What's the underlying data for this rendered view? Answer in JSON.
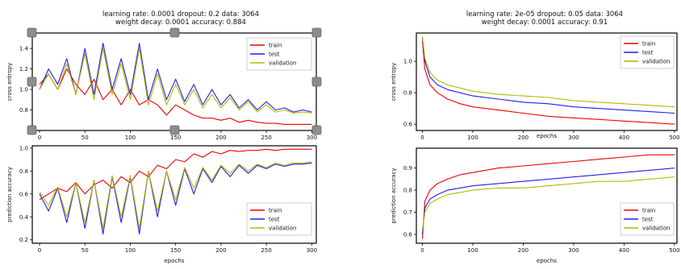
{
  "figures": [
    {
      "title_line1": "learning rate: 0.0001 dropout: 0.2 data: 3064",
      "title_line2": "weight decay: 0.0001 accuracy: 0.884"
    },
    {
      "title_line1": "learning rate: 2e-05 dropout: 0.05 data: 3064",
      "title_line2": "weight decay: 0.0001 accuracy: 0.91"
    }
  ],
  "colors": {
    "train": "#ee0000",
    "test": "#1f1fee",
    "validation": "#b8b800"
  },
  "chart_data": [
    {
      "type": "line",
      "panel": "top-left",
      "xlabel": "",
      "ylabel": "cross entropy",
      "xlim": [
        -8,
        305
      ],
      "ylim": [
        0.6,
        1.55
      ],
      "xticks": [
        0,
        50,
        100,
        150,
        200,
        250,
        300
      ],
      "yticks": [
        0.8,
        1.0,
        1.2,
        1.4
      ],
      "legend": "top-right",
      "legend_labels": [
        "train",
        "test",
        "validation"
      ],
      "series": [
        {
          "name": "train",
          "x": [
            0,
            10,
            20,
            30,
            40,
            50,
            60,
            70,
            80,
            90,
            100,
            110,
            120,
            130,
            140,
            150,
            160,
            170,
            180,
            190,
            200,
            210,
            220,
            230,
            240,
            250,
            260,
            270,
            280,
            290,
            300
          ],
          "y": [
            1.05,
            1.15,
            1.0,
            1.2,
            1.05,
            0.95,
            1.1,
            0.9,
            1.0,
            0.85,
            1.0,
            0.85,
            0.9,
            0.85,
            0.75,
            0.85,
            0.8,
            0.75,
            0.72,
            0.72,
            0.7,
            0.72,
            0.68,
            0.7,
            0.68,
            0.67,
            0.67,
            0.66,
            0.66,
            0.66,
            0.66
          ]
        },
        {
          "name": "test",
          "x": [
            0,
            10,
            20,
            30,
            40,
            50,
            60,
            70,
            80,
            90,
            100,
            110,
            120,
            130,
            140,
            150,
            160,
            170,
            180,
            190,
            200,
            210,
            220,
            230,
            240,
            250,
            260,
            270,
            280,
            290,
            300
          ],
          "y": [
            1.0,
            1.2,
            1.05,
            1.3,
            0.95,
            1.4,
            0.95,
            1.45,
            1.0,
            1.3,
            0.95,
            1.45,
            0.9,
            1.2,
            0.9,
            1.1,
            0.88,
            1.05,
            0.85,
            1.0,
            0.85,
            0.95,
            0.82,
            0.9,
            0.8,
            0.88,
            0.8,
            0.82,
            0.78,
            0.8,
            0.78
          ]
        },
        {
          "name": "validation",
          "x": [
            0,
            10,
            20,
            30,
            40,
            50,
            60,
            70,
            80,
            90,
            100,
            110,
            120,
            130,
            140,
            150,
            160,
            170,
            180,
            190,
            200,
            210,
            220,
            230,
            240,
            250,
            260,
            270,
            280,
            290,
            300
          ],
          "y": [
            1.0,
            1.15,
            1.0,
            1.25,
            0.95,
            1.35,
            0.9,
            1.4,
            0.95,
            1.25,
            0.9,
            1.4,
            0.85,
            1.15,
            0.85,
            1.05,
            0.85,
            1.0,
            0.82,
            0.95,
            0.82,
            0.92,
            0.8,
            0.88,
            0.78,
            0.85,
            0.78,
            0.8,
            0.77,
            0.78,
            0.77
          ]
        }
      ]
    },
    {
      "type": "line",
      "panel": "bottom-left",
      "xlabel": "epochs",
      "ylabel": "prediction accuracy",
      "xlim": [
        -8,
        305
      ],
      "ylim": [
        0.17,
        1.02
      ],
      "xticks": [
        0,
        50,
        100,
        150,
        200,
        250,
        300
      ],
      "yticks": [
        0.2,
        0.4,
        0.6,
        0.8,
        1.0
      ],
      "legend": "lower-right",
      "legend_labels": [
        "train",
        "test",
        "validation"
      ],
      "series": [
        {
          "name": "train",
          "x": [
            0,
            10,
            20,
            30,
            40,
            50,
            60,
            70,
            80,
            90,
            100,
            110,
            120,
            130,
            140,
            150,
            160,
            170,
            180,
            190,
            200,
            210,
            220,
            230,
            240,
            250,
            260,
            270,
            280,
            290,
            300
          ],
          "y": [
            0.55,
            0.6,
            0.65,
            0.62,
            0.7,
            0.6,
            0.68,
            0.72,
            0.65,
            0.75,
            0.7,
            0.8,
            0.75,
            0.85,
            0.82,
            0.9,
            0.88,
            0.95,
            0.92,
            0.97,
            0.95,
            0.98,
            0.97,
            0.98,
            0.98,
            0.99,
            0.98,
            0.99,
            0.99,
            0.99,
            0.99
          ]
        },
        {
          "name": "test",
          "x": [
            0,
            10,
            20,
            30,
            40,
            50,
            60,
            70,
            80,
            90,
            100,
            110,
            120,
            130,
            140,
            150,
            160,
            170,
            180,
            190,
            200,
            210,
            220,
            230,
            240,
            250,
            260,
            270,
            280,
            290,
            300
          ],
          "y": [
            0.6,
            0.45,
            0.65,
            0.35,
            0.7,
            0.3,
            0.72,
            0.25,
            0.75,
            0.35,
            0.75,
            0.25,
            0.8,
            0.4,
            0.8,
            0.5,
            0.82,
            0.6,
            0.82,
            0.7,
            0.84,
            0.75,
            0.85,
            0.78,
            0.85,
            0.82,
            0.86,
            0.84,
            0.86,
            0.86,
            0.87
          ]
        },
        {
          "name": "validation",
          "x": [
            0,
            10,
            20,
            30,
            40,
            50,
            60,
            70,
            80,
            90,
            100,
            110,
            120,
            130,
            140,
            150,
            160,
            170,
            180,
            190,
            200,
            210,
            220,
            230,
            240,
            250,
            260,
            270,
            280,
            290,
            300
          ],
          "y": [
            0.62,
            0.5,
            0.66,
            0.4,
            0.7,
            0.35,
            0.72,
            0.3,
            0.76,
            0.4,
            0.76,
            0.3,
            0.8,
            0.45,
            0.8,
            0.55,
            0.83,
            0.65,
            0.83,
            0.72,
            0.85,
            0.78,
            0.86,
            0.8,
            0.86,
            0.83,
            0.87,
            0.85,
            0.87,
            0.87,
            0.88
          ]
        }
      ]
    },
    {
      "type": "line",
      "panel": "top-right",
      "xlabel": "epochs",
      "ylabel": "cross entropy",
      "xlim": [
        -12,
        505
      ],
      "ylim": [
        0.56,
        1.18
      ],
      "xticks": [
        0,
        100,
        200,
        300,
        400,
        500
      ],
      "yticks": [
        0.6,
        0.8,
        1.0
      ],
      "legend": "top-right",
      "legend_labels": [
        "train",
        "test",
        "validation"
      ],
      "series": [
        {
          "name": "train",
          "x": [
            0,
            5,
            15,
            30,
            50,
            75,
            100,
            150,
            200,
            250,
            300,
            350,
            400,
            450,
            500
          ],
          "y": [
            1.13,
            0.95,
            0.85,
            0.8,
            0.76,
            0.73,
            0.71,
            0.69,
            0.67,
            0.65,
            0.64,
            0.63,
            0.62,
            0.61,
            0.6
          ]
        },
        {
          "name": "test",
          "x": [
            0,
            5,
            15,
            30,
            50,
            75,
            100,
            150,
            200,
            250,
            300,
            350,
            400,
            450,
            500
          ],
          "y": [
            1.15,
            1.0,
            0.9,
            0.85,
            0.82,
            0.8,
            0.78,
            0.76,
            0.74,
            0.73,
            0.71,
            0.7,
            0.69,
            0.68,
            0.67
          ]
        },
        {
          "name": "validation",
          "x": [
            0,
            5,
            15,
            30,
            50,
            75,
            100,
            150,
            200,
            250,
            300,
            350,
            400,
            450,
            500
          ],
          "y": [
            1.16,
            1.02,
            0.93,
            0.88,
            0.85,
            0.83,
            0.81,
            0.79,
            0.78,
            0.77,
            0.75,
            0.74,
            0.73,
            0.72,
            0.71
          ]
        }
      ]
    },
    {
      "type": "line",
      "panel": "bottom-right",
      "xlabel": "epochs",
      "ylabel": "prediction accuracy",
      "xlim": [
        -12,
        505
      ],
      "ylim": [
        0.56,
        0.99
      ],
      "xticks": [
        0,
        100,
        200,
        300,
        400,
        500
      ],
      "yticks": [
        0.6,
        0.7,
        0.8,
        0.9
      ],
      "legend": "lower-right",
      "legend_labels": [
        "train",
        "test",
        "validation"
      ],
      "series": [
        {
          "name": "train",
          "x": [
            0,
            5,
            15,
            30,
            50,
            75,
            100,
            150,
            200,
            250,
            300,
            350,
            400,
            450,
            500
          ],
          "y": [
            0.58,
            0.75,
            0.8,
            0.83,
            0.85,
            0.87,
            0.88,
            0.9,
            0.91,
            0.92,
            0.93,
            0.94,
            0.95,
            0.96,
            0.96
          ]
        },
        {
          "name": "test",
          "x": [
            0,
            5,
            15,
            30,
            50,
            75,
            100,
            150,
            200,
            250,
            300,
            350,
            400,
            450,
            500
          ],
          "y": [
            0.6,
            0.72,
            0.76,
            0.78,
            0.8,
            0.81,
            0.82,
            0.83,
            0.84,
            0.85,
            0.86,
            0.87,
            0.88,
            0.89,
            0.9
          ]
        },
        {
          "name": "validation",
          "x": [
            0,
            5,
            15,
            30,
            50,
            75,
            100,
            150,
            200,
            250,
            300,
            350,
            400,
            450,
            500
          ],
          "y": [
            0.62,
            0.7,
            0.74,
            0.76,
            0.78,
            0.79,
            0.8,
            0.81,
            0.81,
            0.82,
            0.83,
            0.84,
            0.84,
            0.85,
            0.86
          ]
        }
      ]
    }
  ]
}
